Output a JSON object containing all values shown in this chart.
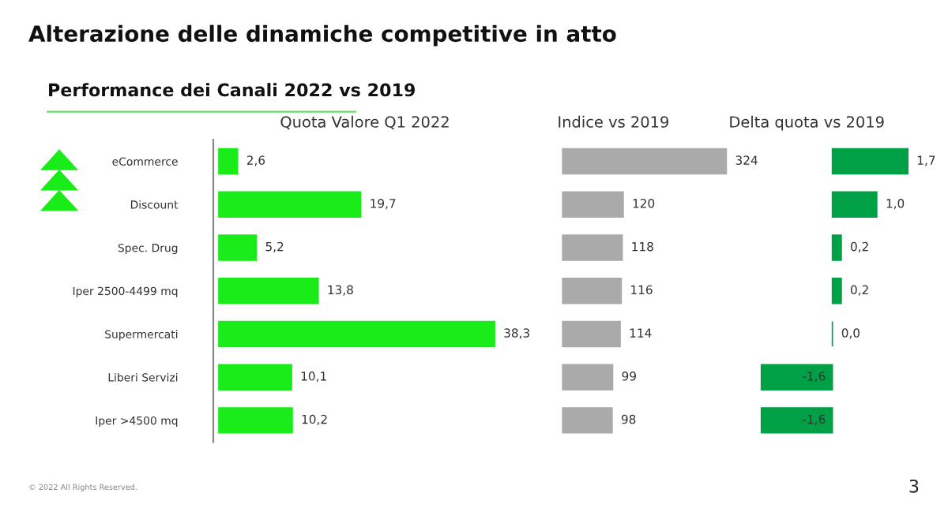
{
  "chart_data": [
    {
      "type": "bar",
      "orientation": "horizontal",
      "title": "Quota Valore Q1 2022",
      "categories": [
        "eCommerce",
        "Discount",
        "Spec. Drug",
        "Iper 2500-4499 mq",
        "Supermercati",
        "Liberi Servizi",
        "Iper >4500 mq"
      ],
      "values": [
        2.6,
        19.7,
        5.2,
        13.8,
        38.3,
        10.1,
        10.2
      ],
      "value_labels": [
        "2,6",
        "19,7",
        "5,2",
        "13,8",
        "38,3",
        "10,1",
        "10,2"
      ],
      "color": "#19ec19",
      "tick_labels": "y",
      "grid": false,
      "legend": false,
      "annotations": [
        "Alterazione delle dinamiche competitive in atto",
        "Performance dei Canali 2022 vs 2019",
        "© 2022 All Rights Reserved.",
        "3"
      ]
    },
    {
      "type": "bar",
      "orientation": "horizontal",
      "title": "Indice vs 2019",
      "values": [
        324,
        120,
        118,
        116,
        114,
        99,
        98
      ],
      "data_labels": true,
      "color": "#aaaaaa",
      "tick_labels": false,
      "grid": false,
      "legend": false
    },
    {
      "type": "bar",
      "orientation": "horizontal",
      "title": "Delta quota vs 2019",
      "values": [
        1.7,
        1.0,
        0.2,
        0.2,
        0.0,
        -1.6,
        -1.6
      ],
      "value_labels": [
        "1,7",
        "1,0",
        "0,2",
        "0,2",
        "0,0",
        "-1,6",
        "-1,6"
      ],
      "color": "#00a046",
      "tick_labels": false,
      "grid": false,
      "legend": false
    }
  ]
}
